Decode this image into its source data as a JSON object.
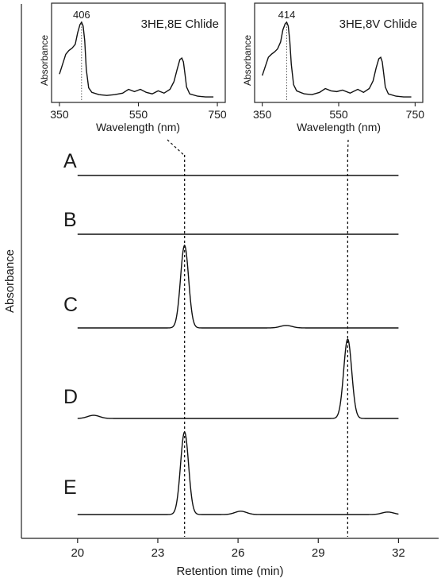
{
  "chart_data": [
    {
      "type": "line",
      "xlabel": "Retention time (min)",
      "ylabel": "Absorbance",
      "xlim": [
        17.9,
        33.5
      ],
      "xticks": [
        20,
        23,
        26,
        29,
        32
      ],
      "grid": false,
      "peak_markers": [
        24.0,
        30.1
      ],
      "panels": [
        {
          "label": "A",
          "peaks": []
        },
        {
          "label": "B",
          "peaks": []
        },
        {
          "label": "C",
          "peaks": [
            {
              "x": 24.0,
              "height": 1.0
            },
            {
              "x": 27.8,
              "height": 0.03
            }
          ]
        },
        {
          "label": "D",
          "peaks": [
            {
              "x": 20.6,
              "height": 0.04
            },
            {
              "x": 30.1,
              "height": 1.0
            }
          ]
        },
        {
          "label": "E",
          "peaks": [
            {
              "x": 24.0,
              "height": 1.0
            },
            {
              "x": 26.1,
              "height": 0.04
            },
            {
              "x": 31.6,
              "height": 0.03
            }
          ]
        }
      ]
    },
    {
      "type": "line",
      "title": "3HE,8E Chlide",
      "xlabel": "Wavelength (nm)",
      "ylabel": "Absorbance",
      "xlim": [
        330,
        770
      ],
      "xticks": [
        350,
        550,
        750
      ],
      "peak_label": "406",
      "peak_x": 406,
      "x": [
        350,
        358,
        366,
        374,
        382,
        390,
        396,
        402,
        406,
        410,
        414,
        418,
        424,
        432,
        450,
        470,
        490,
        510,
        525,
        540,
        555,
        570,
        585,
        600,
        615,
        630,
        640,
        648,
        655,
        660,
        664,
        668,
        672,
        680,
        700,
        720,
        740
      ],
      "y": [
        0.32,
        0.45,
        0.58,
        0.63,
        0.66,
        0.71,
        0.86,
        0.97,
        1.0,
        0.95,
        0.76,
        0.38,
        0.14,
        0.08,
        0.05,
        0.04,
        0.05,
        0.07,
        0.12,
        0.09,
        0.12,
        0.08,
        0.06,
        0.1,
        0.07,
        0.12,
        0.22,
        0.38,
        0.51,
        0.53,
        0.48,
        0.32,
        0.15,
        0.06,
        0.03,
        0.02,
        0.02
      ]
    },
    {
      "type": "line",
      "title": "3HE,8V Chlide",
      "xlabel": "Wavelength (nm)",
      "ylabel": "Absorbance",
      "xlim": [
        330,
        770
      ],
      "xticks": [
        350,
        550,
        750
      ],
      "peak_label": "414",
      "peak_x": 414,
      "x": [
        350,
        358,
        366,
        374,
        382,
        390,
        398,
        404,
        410,
        414,
        418,
        422,
        426,
        432,
        440,
        460,
        480,
        500,
        515,
        530,
        545,
        560,
        580,
        600,
        615,
        630,
        640,
        648,
        655,
        660,
        664,
        668,
        672,
        680,
        700,
        720,
        740
      ],
      "y": [
        0.3,
        0.42,
        0.54,
        0.58,
        0.61,
        0.65,
        0.74,
        0.9,
        0.98,
        1.0,
        0.95,
        0.76,
        0.45,
        0.18,
        0.1,
        0.06,
        0.05,
        0.08,
        0.13,
        0.1,
        0.09,
        0.11,
        0.07,
        0.12,
        0.08,
        0.13,
        0.23,
        0.4,
        0.52,
        0.54,
        0.48,
        0.32,
        0.15,
        0.06,
        0.03,
        0.02,
        0.02
      ]
    }
  ]
}
